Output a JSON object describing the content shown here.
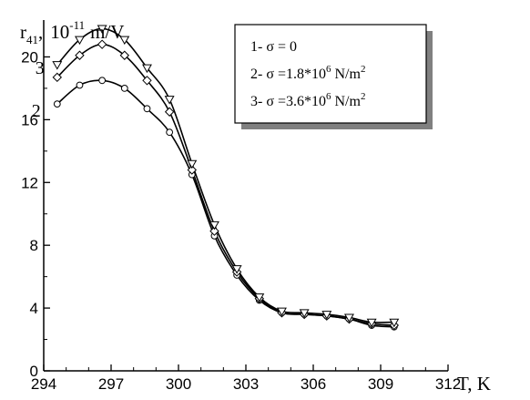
{
  "chart_data": {
    "type": "line",
    "xlabel": "T, K",
    "ylabel": {
      "symbol": "r",
      "sub": "41",
      "sep": ",",
      "base": "10",
      "exp": "-11",
      "unit": "m/V"
    },
    "xlim": [
      294,
      312
    ],
    "ylim": [
      0,
      22
    ],
    "xticks": [
      294,
      297,
      300,
      303,
      306,
      309,
      312
    ],
    "yticks": [
      0,
      4,
      8,
      12,
      16,
      20
    ],
    "grid": false,
    "legend_position": "top-right",
    "legend": [
      {
        "prefix": "1- ",
        "sym": "σ",
        "mid": " = 0",
        "exp": "",
        "unit": "",
        "usup": ""
      },
      {
        "prefix": "2- ",
        "sym": "σ",
        "mid": " =1.8*10",
        "exp": "6",
        "unit": " N/m",
        "usup": "2"
      },
      {
        "prefix": "3- ",
        "sym": "σ",
        "mid": " =3.6*10",
        "exp": "6",
        "unit": " N/m",
        "usup": "2"
      }
    ],
    "series": [
      {
        "label": "2",
        "marker": "circle",
        "points": [
          [
            294.6,
            17.0
          ],
          [
            295.6,
            18.2
          ],
          [
            296.6,
            18.5
          ],
          [
            297.6,
            18.0
          ],
          [
            298.6,
            16.7
          ],
          [
            299.6,
            15.2
          ],
          [
            300.6,
            12.5
          ],
          [
            301.6,
            8.6
          ],
          [
            302.6,
            6.1
          ],
          [
            303.6,
            4.5
          ],
          [
            304.6,
            3.7
          ],
          [
            305.6,
            3.6
          ],
          [
            306.6,
            3.5
          ],
          [
            307.6,
            3.3
          ],
          [
            308.6,
            2.9
          ],
          [
            309.6,
            2.8
          ]
        ]
      },
      {
        "label": "3",
        "marker": "diamond",
        "points": [
          [
            294.6,
            18.7
          ],
          [
            295.6,
            20.1
          ],
          [
            296.6,
            20.8
          ],
          [
            297.6,
            20.1
          ],
          [
            298.6,
            18.5
          ],
          [
            299.6,
            16.5
          ],
          [
            300.6,
            12.8
          ],
          [
            301.6,
            8.9
          ],
          [
            302.6,
            6.3
          ],
          [
            303.6,
            4.6
          ],
          [
            304.6,
            3.7
          ],
          [
            305.6,
            3.6
          ],
          [
            306.6,
            3.5
          ],
          [
            307.6,
            3.3
          ],
          [
            308.6,
            3.0
          ],
          [
            309.6,
            2.9
          ]
        ]
      },
      {
        "label": "",
        "marker": "triangle-down",
        "points": [
          [
            294.6,
            19.5
          ],
          [
            295.6,
            21.1
          ],
          [
            296.6,
            21.8
          ],
          [
            297.6,
            21.1
          ],
          [
            298.6,
            19.3
          ],
          [
            299.6,
            17.3
          ],
          [
            300.6,
            13.2
          ],
          [
            301.6,
            9.3
          ],
          [
            302.6,
            6.5
          ],
          [
            303.6,
            4.7
          ],
          [
            304.6,
            3.8
          ],
          [
            305.6,
            3.7
          ],
          [
            306.6,
            3.6
          ],
          [
            307.6,
            3.4
          ],
          [
            308.6,
            3.1
          ],
          [
            309.6,
            3.1
          ]
        ]
      }
    ]
  }
}
